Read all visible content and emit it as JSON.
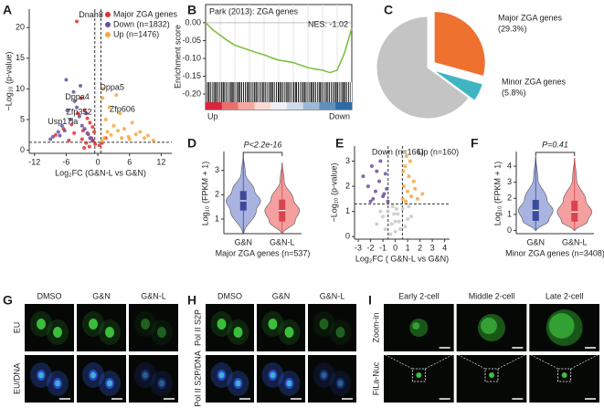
{
  "panel_labels": [
    "A",
    "B",
    "C",
    "D",
    "E",
    "F",
    "G",
    "H",
    "I"
  ],
  "chart_data": [
    {
      "type": "scatter",
      "xlabel": "Log₂FC (G&N-L vs G&N)",
      "ylabel": "−Log₁₀ (p-value)",
      "xlim": [
        -13,
        14
      ],
      "ylim": [
        -0.5,
        23
      ],
      "xticks": [
        -12,
        -6,
        0,
        6,
        12
      ],
      "yticks": [
        0,
        5,
        10,
        15,
        20
      ],
      "vlines": [
        -0.58,
        0.58
      ],
      "hline": 1.3,
      "legend": "upper right",
      "annotations": [
        "Dnah8",
        "Dppa4",
        "Dppa5",
        "Zfp352",
        "Zfp606",
        "Usp17la"
      ],
      "series": [
        {
          "name": "Major ZGA genes",
          "color": "#e0312f",
          "x": [
            -4.0,
            -3.2,
            -2.5,
            -2.0,
            -1.5,
            -1.0,
            -0.7,
            -3.8,
            -5.0,
            -6.5,
            -8.0,
            -2.8,
            -1.8,
            -1.2,
            -0.9,
            -4.5,
            -3.0,
            -2.2,
            -5.5,
            -0.5,
            0.3,
            0.8,
            1.5,
            -1.6,
            -2.6
          ],
          "values": [
            21,
            8.5,
            6.5,
            5.2,
            4.5,
            3.8,
            3.0,
            6.0,
            4.2,
            3.5,
            2.5,
            3.2,
            2.6,
            2.0,
            1.5,
            2.8,
            1.8,
            1.2,
            1.6,
            1.0,
            0.8,
            1.2,
            2.0,
            0.6,
            0.4
          ]
        },
        {
          "name": "Down (n=1832)",
          "color": "#6a4fa0",
          "x": [
            -9.0,
            -8.5,
            -7.5,
            -6.8,
            -6.0,
            -5.2,
            -4.6,
            -4.0,
            -3.5,
            -3.0,
            -2.5,
            -2.0,
            -1.5,
            -1.0,
            -6.3,
            -5.8,
            -7.2,
            -3.3,
            -2.2,
            -4.4
          ],
          "values": [
            1.8,
            2.2,
            3.0,
            4.0,
            11.5,
            5.0,
            9.5,
            7.0,
            5.5,
            4.0,
            3.5,
            2.8,
            2.0,
            1.6,
            3.2,
            6.5,
            2.4,
            10.5,
            6.0,
            8.0
          ]
        },
        {
          "name": "Up (n=1476)",
          "color": "#f5a742",
          "x": [
            0.8,
            1.2,
            1.8,
            2.5,
            3.0,
            3.8,
            4.5,
            5.0,
            5.8,
            6.5,
            7.2,
            8.0,
            8.8,
            9.5,
            10.5,
            1.5,
            2.2,
            3.5,
            4.2,
            6.0,
            0.9,
            1.0
          ],
          "values": [
            1.5,
            2.0,
            3.0,
            2.5,
            4.0,
            3.2,
            2.0,
            3.5,
            2.2,
            4.5,
            2.6,
            3.0,
            2.0,
            2.4,
            1.6,
            5.0,
            7.0,
            9.0,
            6.0,
            1.8,
            8.5,
            10.0
          ]
        }
      ]
    },
    {
      "type": "gsea",
      "title": "Park (2013): ZGA genes",
      "annotation": "NES: -1.02",
      "ylabel": "Enrichment score",
      "ylim": [
        -0.223,
        0.051
      ],
      "yticks": [
        {
          "value": 0,
          "label": "0.00"
        },
        -0.05,
        {
          "value": -0.1,
          "label": "-0.10"
        },
        -0.15,
        {
          "value": -0.2,
          "label": "-0.20"
        }
      ],
      "color": "#7cc242",
      "left_label": "Up",
      "right_label": "Down",
      "values": [
        0,
        -0.02,
        -0.035,
        -0.05,
        -0.063,
        -0.07,
        -0.077,
        -0.084,
        -0.09,
        -0.098,
        -0.105,
        -0.108,
        -0.112,
        -0.119,
        -0.126,
        -0.13,
        -0.133,
        -0.14,
        -0.133,
        -0.085,
        -0.015
      ]
    },
    {
      "type": "pie",
      "categories": [
        "Major ZGA genes",
        "Minor ZGA genes",
        null
      ],
      "values": [
        29.3,
        5.8,
        64.9
      ],
      "value_labels": [
        "(29.3%)",
        "(5.8%)",
        null
      ],
      "colors": [
        "#ee7130",
        "#3fb5c4",
        "#c4c4c4"
      ]
    },
    {
      "type": "violin",
      "categories": [
        "G&N",
        "G&N-L"
      ],
      "ylabel": "Log₁₀ (FPKM + 1)",
      "xlabel": "Major ZGA genes (n=537)",
      "p_label": "P<2.2e-16",
      "ylim": [
        0.4,
        3.7
      ],
      "yticks": [
        1,
        2,
        3
      ],
      "colors": [
        "#a9b3e0",
        "#f4a0a0"
      ],
      "box_colors": [
        "#3c4a9c",
        "#d9434e"
      ],
      "boxes": [
        {
          "min": 0.4,
          "q1": 1.35,
          "median": 1.75,
          "q3": 2.15,
          "max": 3.6
        },
        {
          "min": 0.4,
          "q1": 0.9,
          "median": 1.35,
          "q3": 1.8,
          "max": 3.3
        }
      ]
    },
    {
      "type": "scatter",
      "xlabel": "Log₂FC ( G&N-L vs G&N)",
      "ylabel": "−Log₁₀ (p-value)",
      "xlim": [
        -3.3,
        4.4
      ],
      "ylim": [
        -0.1,
        3.6
      ],
      "xticks": [
        -3,
        -2,
        -1,
        0,
        1,
        2,
        3,
        4
      ],
      "yticks": [
        0,
        1,
        2,
        3
      ],
      "vlines": [
        -0.58,
        0.58
      ],
      "hline": 1.3,
      "annotations": [
        "Down (n=166)",
        "Up (n=160)"
      ],
      "series": [
        {
          "color": "#c8c8c8",
          "x": [
            -1.0,
            -0.6,
            -0.3,
            0,
            0.3,
            0.6,
            1.0,
            -0.8,
            -0.2,
            0.2,
            0.8,
            -1.5,
            1.3,
            -0.4,
            0.4,
            0,
            -1.2,
            1.1,
            -0.1,
            0.1
          ],
          "values": [
            0.8,
            1.0,
            0.5,
            0.2,
            0.6,
            1.1,
            0.7,
            0.3,
            1.2,
            0.9,
            0.4,
            0.5,
            0.8,
            0.1,
            0.3,
            0.6,
            1.0,
            1.2,
            0.9,
            1.1
          ]
        },
        {
          "color": "#6a4fa0",
          "x": [
            -2.6,
            -2.2,
            -1.9,
            -1.6,
            -1.3,
            -1.0,
            -0.8,
            -0.6,
            -1.8,
            -1.2,
            -0.7,
            -2.0,
            -1.5,
            -0.9
          ],
          "values": [
            2.4,
            2.0,
            2.8,
            1.8,
            2.2,
            1.6,
            2.5,
            1.4,
            1.5,
            3.0,
            1.9,
            1.4,
            2.6,
            1.7
          ]
        },
        {
          "color": "#f5a742",
          "x": [
            0.6,
            0.7,
            0.8,
            0.9,
            1.0,
            1.1,
            1.3,
            1.5,
            1.8,
            2.2,
            0.65,
            0.85,
            1.2,
            1.6
          ],
          "values": [
            1.5,
            2.0,
            2.8,
            3.2,
            1.8,
            2.4,
            1.6,
            2.2,
            1.5,
            1.7,
            2.6,
            1.4,
            3.0,
            1.9
          ]
        }
      ]
    },
    {
      "type": "violin",
      "categories": [
        "G&N",
        "G&N-L"
      ],
      "ylabel": "Log₁₀ (FPKM + 1)",
      "xlabel": "Minor ZGA genes (n=3408)",
      "p_label": "P=0.41",
      "ylim": [
        -0.2,
        4.8
      ],
      "yticks": [
        0,
        1,
        2,
        3,
        4
      ],
      "colors": [
        "#a9b3e0",
        "#f4a0a0"
      ],
      "box_colors": [
        "#3c4a9c",
        "#d9434e"
      ],
      "boxes": [
        {
          "min": 0,
          "q1": 0.6,
          "median": 1.25,
          "q3": 1.9,
          "max": 4.6
        },
        {
          "min": 0,
          "q1": 0.55,
          "median": 1.15,
          "q3": 1.85,
          "max": 4.5
        }
      ]
    }
  ],
  "images": {
    "G": {
      "columns": [
        "DMSO",
        "G&N",
        "G&N-L"
      ],
      "rows": [
        "EU",
        "EU/DNA"
      ]
    },
    "H": {
      "columns": [
        "DMSO",
        "G&N",
        "G&N-L"
      ],
      "rows": [
        "Pol II S2P",
        "Pol II S2P/DNA"
      ]
    },
    "I": {
      "columns": [
        "Early 2-cell",
        "Middle 2-cell",
        "Late 2-cell"
      ],
      "rows": [
        "Zoom-in",
        "FiLa-Nuc"
      ]
    }
  }
}
